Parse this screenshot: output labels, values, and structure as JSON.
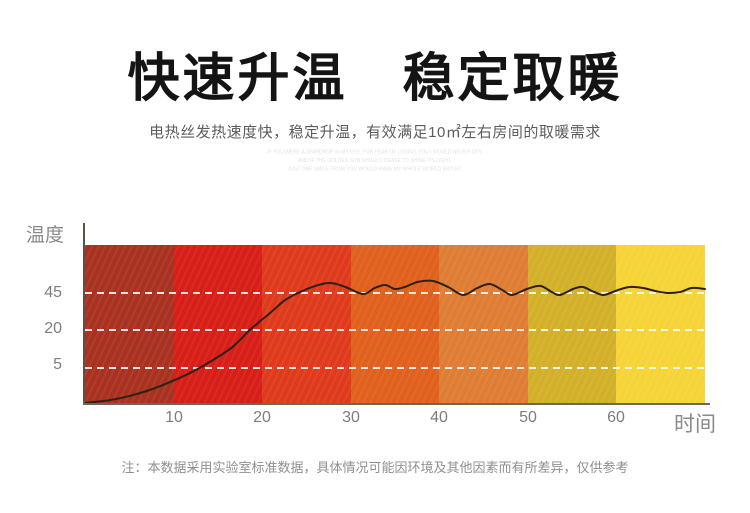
{
  "header": {
    "title": "快速升温　稳定取暖",
    "subtitle": "电热丝发热速度快，稳定升温，有效满足10㎡左右房间的取暖需求",
    "watermark": [
      "IF YOU WERE A TEARDROP IN MY EYE, FOR FEAR OF LOSING YOU I WOULD NEVER CRY.",
      "AND IF THE GOLDEN SUN SHOULD CEASE TO SHINE ITS LIGHT,",
      "JUST ONE SMILE FROM YOU WOULD MAKE MY WHOLE WORLD BRIGHT."
    ]
  },
  "chart": {
    "y_axis_label": "温度",
    "x_axis_label": "时间",
    "y_tick_labels": [
      "45",
      "20",
      "5"
    ],
    "x_tick_labels": [
      "10",
      "20",
      "30",
      "40",
      "50",
      "60"
    ]
  },
  "chart_data": {
    "type": "line",
    "title": "快速升温 稳定取暖",
    "xlabel": "时间",
    "ylabel": "温度",
    "x_ticks": [
      10,
      20,
      30,
      40,
      50,
      60
    ],
    "y_ticks": [
      5,
      20,
      45
    ],
    "x_range": [
      0,
      70
    ],
    "grid": "dashed-white-horizontal",
    "legend": "none",
    "band_colors": [
      "#f6d437",
      "#d3b02a",
      "#de7d33",
      "#e0601e",
      "#df3a1b",
      "#d71e17",
      "#a93120"
    ],
    "line_color": "#2e2013",
    "series": [
      {
        "name": "温度",
        "points": [
          [
            0,
            0
          ],
          [
            2.8,
            0.4
          ],
          [
            5.1,
            1
          ],
          [
            7.3,
            1.8
          ],
          [
            9.6,
            2.9
          ],
          [
            11.9,
            4.2
          ],
          [
            14.1,
            7
          ],
          [
            16.7,
            13
          ],
          [
            18.6,
            19.6
          ],
          [
            20.9,
            30.8
          ],
          [
            22.6,
            39.6
          ],
          [
            24.3,
            45
          ],
          [
            26,
            49.1
          ],
          [
            27.7,
            51.1
          ],
          [
            29.4,
            48.4
          ],
          [
            31.4,
            43.6
          ],
          [
            32.7,
            47.7
          ],
          [
            33.9,
            49.7
          ],
          [
            35,
            47
          ],
          [
            36.1,
            48.4
          ],
          [
            37.6,
            51.8
          ],
          [
            39.3,
            52.4
          ],
          [
            41,
            48.4
          ],
          [
            42.7,
            43
          ],
          [
            44.3,
            47.7
          ],
          [
            45.7,
            50.4
          ],
          [
            47.1,
            46.4
          ],
          [
            48.2,
            43
          ],
          [
            49.9,
            47
          ],
          [
            51.4,
            49.1
          ],
          [
            52.7,
            45
          ],
          [
            53.6,
            43
          ],
          [
            55.1,
            47
          ],
          [
            56.2,
            48.4
          ],
          [
            57.5,
            45
          ],
          [
            58.6,
            43
          ],
          [
            60.2,
            46.4
          ],
          [
            61.5,
            48.4
          ],
          [
            63,
            47.7
          ],
          [
            64.4,
            45.7
          ],
          [
            65.8,
            44.3
          ],
          [
            67.2,
            45
          ],
          [
            68.5,
            47.7
          ],
          [
            70,
            47
          ]
        ]
      }
    ]
  },
  "footer": {
    "note": "注：本数据采用实验室标准数据，具体情况可能因环境及其他因素而有所差异，仅供参考"
  }
}
